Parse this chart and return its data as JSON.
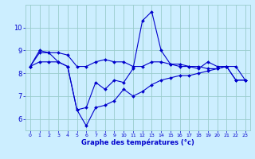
{
  "xlabel": "Graphe des températures (°c)",
  "bg_color": "#cceeff",
  "grid_color": "#99cccc",
  "line_color": "#0000cc",
  "xlim": [
    -0.5,
    23.5
  ],
  "ylim": [
    5.5,
    11.0
  ],
  "xticks": [
    0,
    1,
    2,
    3,
    4,
    5,
    6,
    7,
    8,
    9,
    10,
    11,
    12,
    13,
    14,
    15,
    16,
    17,
    18,
    19,
    20,
    21,
    22,
    23
  ],
  "yticks": [
    6,
    7,
    8,
    9,
    10
  ],
  "hours": [
    0,
    1,
    2,
    3,
    4,
    5,
    6,
    7,
    8,
    9,
    10,
    11,
    12,
    13,
    14,
    15,
    16,
    17,
    18,
    19,
    20,
    21,
    22,
    23
  ],
  "line1": [
    8.3,
    8.9,
    8.9,
    8.9,
    8.8,
    8.3,
    8.3,
    8.5,
    8.6,
    8.5,
    8.5,
    8.3,
    8.3,
    8.5,
    8.5,
    8.4,
    8.4,
    8.3,
    8.3,
    8.2,
    8.2,
    8.3,
    8.3,
    7.7
  ],
  "line2": [
    8.3,
    9.0,
    8.9,
    8.5,
    8.3,
    6.4,
    6.5,
    7.6,
    7.3,
    7.7,
    7.6,
    8.2,
    10.3,
    10.7,
    9.0,
    8.4,
    8.3,
    8.3,
    8.2,
    8.5,
    8.3,
    8.3,
    7.7,
    7.7
  ],
  "line3": [
    8.3,
    8.5,
    8.5,
    8.5,
    8.3,
    6.4,
    5.7,
    6.5,
    6.6,
    6.8,
    7.3,
    7.0,
    7.2,
    7.5,
    7.7,
    7.8,
    7.9,
    7.9,
    8.0,
    8.1,
    8.2,
    8.3,
    7.7,
    7.7
  ]
}
